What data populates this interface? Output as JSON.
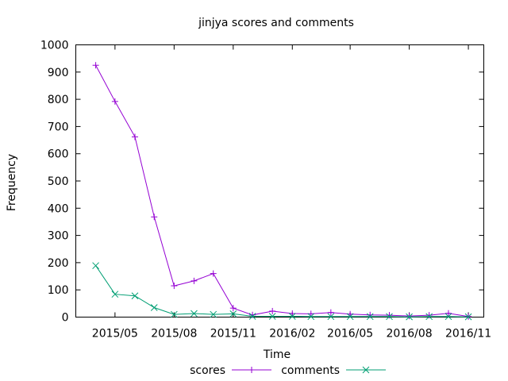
{
  "chart_data": {
    "type": "line",
    "title": "jinjya scores and comments",
    "xlabel": "Time",
    "ylabel": "Frequency",
    "ylim": [
      0,
      1000
    ],
    "xlim": [
      "2015-03-01",
      "2016-11-25"
    ],
    "yticks": [
      "0",
      "100",
      "200",
      "300",
      "400",
      "500",
      "600",
      "700",
      "800",
      "900",
      "1000"
    ],
    "xticks": [
      {
        "label": "2015/05",
        "date": "2015-05-01"
      },
      {
        "label": "2015/08",
        "date": "2015-08-01"
      },
      {
        "label": "2015/11",
        "date": "2015-11-01"
      },
      {
        "label": "2016/02",
        "date": "2016-02-01"
      },
      {
        "label": "2016/05",
        "date": "2016-05-01"
      },
      {
        "label": "2016/08",
        "date": "2016-08-01"
      },
      {
        "label": "2016/11",
        "date": "2016-11-01"
      }
    ],
    "x": [
      "2015-04-01",
      "2015-05-01",
      "2015-06-01",
      "2015-07-01",
      "2015-08-01",
      "2015-09-01",
      "2015-10-01",
      "2015-11-01",
      "2015-12-01",
      "2016-01-01",
      "2016-02-01",
      "2016-03-01",
      "2016-04-01",
      "2016-05-01",
      "2016-06-01",
      "2016-07-01",
      "2016-08-01",
      "2016-09-01",
      "2016-10-01",
      "2016-11-01"
    ],
    "series": [
      {
        "name": "scores",
        "color": "#9400d3",
        "marker": "plus",
        "values": [
          925,
          792,
          662,
          368,
          115,
          133,
          160,
          33,
          8,
          22,
          13,
          12,
          17,
          11,
          8,
          7,
          4,
          7,
          14,
          2
        ]
      },
      {
        "name": "comments",
        "color": "#009e73",
        "marker": "cross",
        "values": [
          189,
          84,
          78,
          35,
          10,
          13,
          10,
          12,
          3,
          3,
          3,
          2,
          2,
          2,
          2,
          2,
          1,
          2,
          2,
          1
        ]
      }
    ],
    "grid": false,
    "legend_position": "bottom-center"
  }
}
